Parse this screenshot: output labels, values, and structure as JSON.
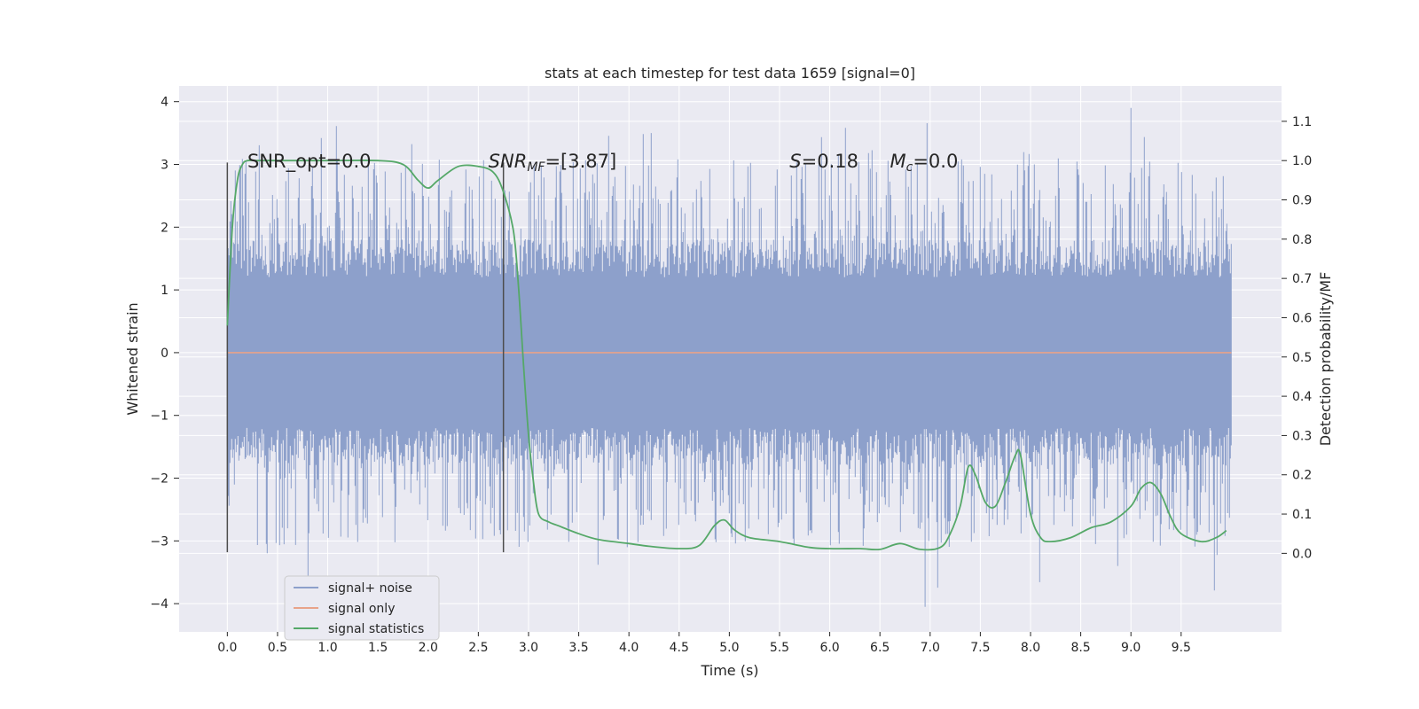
{
  "chart_data": {
    "type": "line",
    "title": "stats at each timestep for test data 1659 [signal=0]",
    "xlabel": "Time (s)",
    "ylabel": "Whitened strain",
    "y2label": "Detection probability/MF",
    "xlim": [
      -0.48,
      10.5
    ],
    "ylim": [
      -4.45,
      4.25
    ],
    "y2lim": [
      -0.2,
      1.19
    ],
    "x_ticks": [
      "0.0",
      "0.5",
      "1.0",
      "1.5",
      "2.0",
      "2.5",
      "3.0",
      "3.5",
      "4.0",
      "4.5",
      "5.0",
      "5.5",
      "6.0",
      "6.5",
      "7.0",
      "7.5",
      "8.0",
      "8.5",
      "9.0",
      "9.5"
    ],
    "y_ticks": [
      "4",
      "3",
      "2",
      "1",
      "0",
      "−1",
      "−2",
      "−3",
      "−4"
    ],
    "y2_ticks": [
      "1.1",
      "1.0",
      "0.9",
      "0.8",
      "0.7",
      "0.6",
      "0.5",
      "0.4",
      "0.3",
      "0.2",
      "0.1",
      "0.0"
    ],
    "grid": true,
    "legend_position": "lower-left",
    "colors": {
      "background": "#eaeaf2",
      "grid": "#ffffff",
      "noise": "#8da0cb",
      "signal_only": "#e8a389",
      "statistics": "#55a868",
      "marker_lines": "#4d4d4d"
    },
    "series": [
      {
        "name": "signal+ noise",
        "axis": "left",
        "kind": "noise",
        "x_range": [
          0,
          10
        ],
        "typical_band": [
          -1.9,
          1.8
        ],
        "peak_max": 3.9,
        "trough_min": -4.05
      },
      {
        "name": "signal only",
        "axis": "left",
        "x": [
          0,
          10
        ],
        "y": [
          0,
          0
        ]
      },
      {
        "name": "signal statistics",
        "axis": "right",
        "x": [
          0.0,
          0.05,
          0.1,
          0.15,
          0.2,
          0.3,
          0.5,
          1.0,
          1.5,
          1.75,
          1.9,
          2.0,
          2.1,
          2.3,
          2.5,
          2.65,
          2.75,
          2.85,
          2.9,
          2.95,
          3.0,
          3.05,
          3.1,
          3.2,
          3.3,
          3.5,
          3.7,
          4.0,
          4.2,
          4.5,
          4.7,
          4.85,
          4.95,
          5.05,
          5.2,
          5.5,
          5.8,
          6.0,
          6.3,
          6.5,
          6.7,
          6.9,
          7.1,
          7.2,
          7.3,
          7.38,
          7.45,
          7.55,
          7.65,
          7.75,
          7.85,
          7.9,
          8.0,
          8.1,
          8.2,
          8.4,
          8.6,
          8.8,
          9.0,
          9.1,
          9.2,
          9.3,
          9.4,
          9.5,
          9.7,
          9.85,
          9.95
        ],
        "y": [
          0.58,
          0.83,
          0.95,
          0.99,
          1.0,
          1.0,
          1.0,
          1.0,
          1.0,
          0.99,
          0.95,
          0.93,
          0.95,
          0.985,
          0.985,
          0.97,
          0.92,
          0.82,
          0.68,
          0.48,
          0.3,
          0.18,
          0.1,
          0.08,
          0.07,
          0.05,
          0.035,
          0.025,
          0.018,
          0.012,
          0.02,
          0.07,
          0.085,
          0.06,
          0.04,
          0.03,
          0.015,
          0.012,
          0.012,
          0.01,
          0.025,
          0.01,
          0.015,
          0.05,
          0.12,
          0.22,
          0.2,
          0.13,
          0.12,
          0.18,
          0.25,
          0.25,
          0.1,
          0.04,
          0.03,
          0.04,
          0.065,
          0.08,
          0.12,
          0.165,
          0.18,
          0.15,
          0.09,
          0.05,
          0.03,
          0.04,
          0.058
        ]
      }
    ],
    "vertical_markers": [
      0.0,
      2.75
    ],
    "annotations": [
      {
        "label": "SNR_opt=0.0",
        "x": 0.2
      },
      {
        "label": "SNR",
        "sub": "MF",
        "rest": "=[3.87]",
        "x": 2.6
      },
      {
        "label": "S",
        "rest": "=0.18",
        "x": 5.6
      },
      {
        "label": "M",
        "sub": "c",
        "rest": "=0.0",
        "x": 6.6
      }
    ]
  }
}
